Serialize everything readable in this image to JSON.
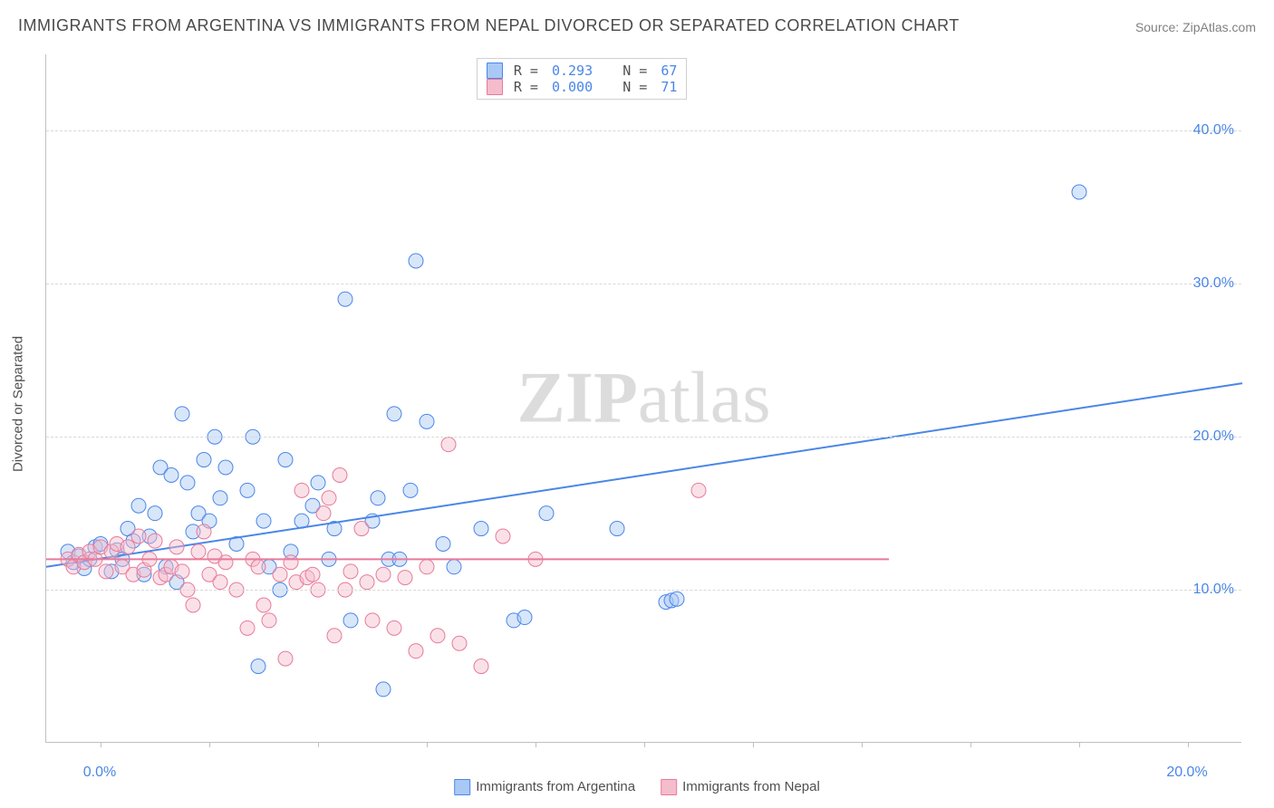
{
  "title": "IMMIGRANTS FROM ARGENTINA VS IMMIGRANTS FROM NEPAL DIVORCED OR SEPARATED CORRELATION CHART",
  "source": "Source: ZipAtlas.com",
  "ylabel": "Divorced or Separated",
  "watermark": "ZIPatlas",
  "chart": {
    "type": "scatter",
    "background_color": "#ffffff",
    "grid_color": "#d8d8d8",
    "axis_color": "#c0c0c0",
    "xlim": [
      -1,
      21
    ],
    "ylim": [
      0,
      45
    ],
    "ytick_labels": [
      "10.0%",
      "20.0%",
      "30.0%",
      "40.0%"
    ],
    "ytick_values": [
      10,
      20,
      30,
      40
    ],
    "xtick_positions": [
      0,
      2,
      4,
      6,
      8,
      10,
      12,
      14,
      16,
      18,
      20
    ],
    "x_axis_end_labels": {
      "left": "0.0%",
      "right": "20.0%"
    },
    "tick_label_color": "#4a86e8",
    "tick_label_fontsize": 16,
    "marker_radius": 8,
    "marker_fill_opacity": 0.45,
    "line_width": 2,
    "series": [
      {
        "name": "Immigrants from Argentina",
        "color_stroke": "#4a86e8",
        "color_fill": "#a9c8f5",
        "R": "0.293",
        "N": "67",
        "trend": {
          "x1": -1,
          "y1": 11.5,
          "x2": 21,
          "y2": 23.5
        },
        "points": [
          [
            -0.6,
            12.5
          ],
          [
            -0.5,
            11.8
          ],
          [
            -0.4,
            12.2
          ],
          [
            -0.3,
            11.4
          ],
          [
            -0.2,
            12.0
          ],
          [
            -0.1,
            12.8
          ],
          [
            0.0,
            13.0
          ],
          [
            0.2,
            11.2
          ],
          [
            0.3,
            12.6
          ],
          [
            0.4,
            12.0
          ],
          [
            0.5,
            14.0
          ],
          [
            0.6,
            13.2
          ],
          [
            0.7,
            15.5
          ],
          [
            0.8,
            11.0
          ],
          [
            0.9,
            13.5
          ],
          [
            1.0,
            15.0
          ],
          [
            1.1,
            18.0
          ],
          [
            1.2,
            11.5
          ],
          [
            1.3,
            17.5
          ],
          [
            1.4,
            10.5
          ],
          [
            1.5,
            21.5
          ],
          [
            1.6,
            17.0
          ],
          [
            1.7,
            13.8
          ],
          [
            1.8,
            15.0
          ],
          [
            1.9,
            18.5
          ],
          [
            2.0,
            14.5
          ],
          [
            2.1,
            20.0
          ],
          [
            2.2,
            16.0
          ],
          [
            2.3,
            18.0
          ],
          [
            2.5,
            13.0
          ],
          [
            2.7,
            16.5
          ],
          [
            2.8,
            20.0
          ],
          [
            2.9,
            5.0
          ],
          [
            3.0,
            14.5
          ],
          [
            3.1,
            11.5
          ],
          [
            3.3,
            10.0
          ],
          [
            3.4,
            18.5
          ],
          [
            3.5,
            12.5
          ],
          [
            3.7,
            14.5
          ],
          [
            3.9,
            15.5
          ],
          [
            4.0,
            17.0
          ],
          [
            4.2,
            12.0
          ],
          [
            4.3,
            14.0
          ],
          [
            4.5,
            29.0
          ],
          [
            4.6,
            8.0
          ],
          [
            5.0,
            14.5
          ],
          [
            5.1,
            16.0
          ],
          [
            5.2,
            3.5
          ],
          [
            5.3,
            12.0
          ],
          [
            5.4,
            21.5
          ],
          [
            5.5,
            12.0
          ],
          [
            5.7,
            16.5
          ],
          [
            5.8,
            31.5
          ],
          [
            6.0,
            21.0
          ],
          [
            6.3,
            13.0
          ],
          [
            6.5,
            11.5
          ],
          [
            7.0,
            14.0
          ],
          [
            7.6,
            8.0
          ],
          [
            7.8,
            8.2
          ],
          [
            8.2,
            15.0
          ],
          [
            9.5,
            14.0
          ],
          [
            10.4,
            9.2
          ],
          [
            10.5,
            9.3
          ],
          [
            10.6,
            9.4
          ],
          [
            18.0,
            36.0
          ]
        ]
      },
      {
        "name": "Immigrants from Nepal",
        "color_stroke": "#e87a9a",
        "color_fill": "#f5bccc",
        "R": "0.000",
        "N": "71",
        "trend": {
          "x1": -1,
          "y1": 12.0,
          "x2": 14.5,
          "y2": 12.0
        },
        "points": [
          [
            -0.6,
            12.0
          ],
          [
            -0.5,
            11.5
          ],
          [
            -0.4,
            12.3
          ],
          [
            -0.3,
            11.8
          ],
          [
            -0.2,
            12.5
          ],
          [
            -0.1,
            12.0
          ],
          [
            0.0,
            12.8
          ],
          [
            0.1,
            11.2
          ],
          [
            0.2,
            12.5
          ],
          [
            0.3,
            13.0
          ],
          [
            0.4,
            11.5
          ],
          [
            0.5,
            12.8
          ],
          [
            0.6,
            11.0
          ],
          [
            0.7,
            13.5
          ],
          [
            0.8,
            11.3
          ],
          [
            0.9,
            12.0
          ],
          [
            1.0,
            13.2
          ],
          [
            1.1,
            10.8
          ],
          [
            1.2,
            11.0
          ],
          [
            1.3,
            11.5
          ],
          [
            1.4,
            12.8
          ],
          [
            1.5,
            11.2
          ],
          [
            1.6,
            10.0
          ],
          [
            1.7,
            9.0
          ],
          [
            1.8,
            12.5
          ],
          [
            1.9,
            13.8
          ],
          [
            2.0,
            11.0
          ],
          [
            2.1,
            12.2
          ],
          [
            2.2,
            10.5
          ],
          [
            2.3,
            11.8
          ],
          [
            2.5,
            10.0
          ],
          [
            2.7,
            7.5
          ],
          [
            2.8,
            12.0
          ],
          [
            2.9,
            11.5
          ],
          [
            3.0,
            9.0
          ],
          [
            3.1,
            8.0
          ],
          [
            3.3,
            11.0
          ],
          [
            3.4,
            5.5
          ],
          [
            3.5,
            11.8
          ],
          [
            3.6,
            10.5
          ],
          [
            3.7,
            16.5
          ],
          [
            3.8,
            10.8
          ],
          [
            3.9,
            11.0
          ],
          [
            4.0,
            10.0
          ],
          [
            4.1,
            15.0
          ],
          [
            4.2,
            16.0
          ],
          [
            4.3,
            7.0
          ],
          [
            4.4,
            17.5
          ],
          [
            4.5,
            10.0
          ],
          [
            4.6,
            11.2
          ],
          [
            4.8,
            14.0
          ],
          [
            4.9,
            10.5
          ],
          [
            5.0,
            8.0
          ],
          [
            5.2,
            11.0
          ],
          [
            5.4,
            7.5
          ],
          [
            5.6,
            10.8
          ],
          [
            5.8,
            6.0
          ],
          [
            6.0,
            11.5
          ],
          [
            6.2,
            7.0
          ],
          [
            6.4,
            19.5
          ],
          [
            6.6,
            6.5
          ],
          [
            7.0,
            5.0
          ],
          [
            7.4,
            13.5
          ],
          [
            8.0,
            12.0
          ],
          [
            11.0,
            16.5
          ]
        ]
      }
    ]
  },
  "legend_top": {
    "position_left_percent": 36,
    "rows": [
      {
        "swatch_fill": "#a9c8f5",
        "swatch_stroke": "#4a86e8",
        "R_label": "R = ",
        "R": "0.293",
        "N_label": "   N = ",
        "N": "67"
      },
      {
        "swatch_fill": "#f5bccc",
        "swatch_stroke": "#e87a9a",
        "R_label": "R = ",
        "R": "0.000",
        "N_label": "   N = ",
        "N": "71"
      }
    ]
  },
  "legend_bottom": [
    {
      "swatch_fill": "#a9c8f5",
      "swatch_stroke": "#4a86e8",
      "label": "Immigrants from Argentina"
    },
    {
      "swatch_fill": "#f5bccc",
      "swatch_stroke": "#e87a9a",
      "label": "Immigrants from Nepal"
    }
  ]
}
